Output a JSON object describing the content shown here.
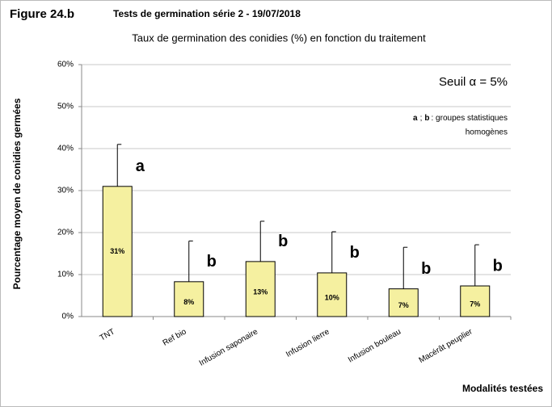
{
  "chart_data": {
    "type": "bar",
    "figure_label": "Figure 24.b",
    "title": "Tests de germination série 2 - 19/07/2018",
    "subtitle": "Taux de germination des conidies (%) en fonction du traitement",
    "y_label": "Pourcentage moyen de conidies germées",
    "x_label": "Modalités testées",
    "categories": [
      "TNT",
      "Ref bio",
      "Infusion saponaire",
      "Infusion lierre",
      "Infusion bouleau",
      "Macérât peuplier"
    ],
    "values": [
      31,
      8.3,
      13.1,
      10.4,
      6.6,
      7.3
    ],
    "value_labels": [
      "31%",
      "8%",
      "13%",
      "10%",
      "7%",
      "7%"
    ],
    "errors": [
      10,
      9.7,
      9.6,
      9.8,
      9.9,
      9.8
    ],
    "group_labels": [
      "a",
      "b",
      "b",
      "b",
      "b",
      "b"
    ],
    "color": "#f5f0a0",
    "ylim": [
      0,
      60
    ],
    "yticks": [
      {
        "value": 0,
        "label": "0%"
      },
      {
        "value": 10,
        "label": "10%"
      },
      {
        "value": 20,
        "label": "20%"
      },
      {
        "value": 30,
        "label": "30%"
      },
      {
        "value": 40,
        "label": "40%"
      },
      {
        "value": 50,
        "label": "50%"
      },
      {
        "value": 60,
        "label": "60%"
      }
    ],
    "grid": true,
    "threshold_note": "Seuil α = 5%",
    "note": [
      "a",
      ";",
      "b",
      ": groupes statistiques",
      "homogènes"
    ]
  }
}
